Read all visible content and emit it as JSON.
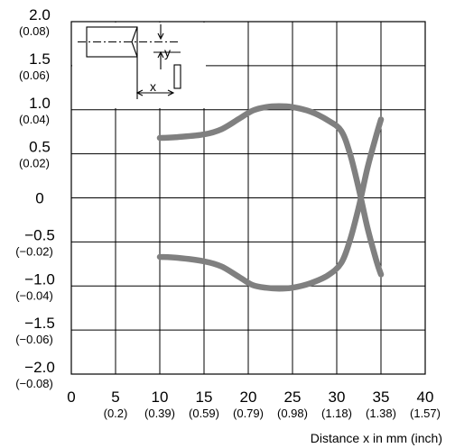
{
  "chart_data": {
    "type": "line",
    "xlabel": "Distance x in mm (inch)",
    "ylabel": "",
    "xlim": [
      0,
      40
    ],
    "ylim": [
      -2.0,
      2.0
    ],
    "grid": true,
    "x_ticks": [
      {
        "value": 0,
        "label": "0",
        "sub": ""
      },
      {
        "value": 5,
        "label": "5",
        "sub": "(0.2)"
      },
      {
        "value": 10,
        "label": "10",
        "sub": "(0.39)"
      },
      {
        "value": 15,
        "label": "15",
        "sub": "(0.59)"
      },
      {
        "value": 20,
        "label": "20",
        "sub": "(0.79)"
      },
      {
        "value": 25,
        "label": "25",
        "sub": "(0.98)"
      },
      {
        "value": 30,
        "label": "30",
        "sub": "(1.18)"
      },
      {
        "value": 35,
        "label": "35",
        "sub": "(1.38)"
      },
      {
        "value": 40,
        "label": "40",
        "sub": "(1.57)"
      }
    ],
    "y_ticks": [
      {
        "value": 2.0,
        "label": "2.0",
        "sub": "(0.08)"
      },
      {
        "value": 1.5,
        "label": "1.5",
        "sub": "(0.06)"
      },
      {
        "value": 1.0,
        "label": "1.0",
        "sub": "(0.04)"
      },
      {
        "value": 0.5,
        "label": "0.5",
        "sub": "(0.02)"
      },
      {
        "value": 0,
        "label": "0",
        "sub": ""
      },
      {
        "value": -0.5,
        "label": "−0.5",
        "sub": "(−0.02)"
      },
      {
        "value": -1.0,
        "label": "−1.0",
        "sub": "(−0.04)"
      },
      {
        "value": -1.5,
        "label": "−1.5",
        "sub": "(−0.06)"
      },
      {
        "value": -2.0,
        "label": "−2.0",
        "sub": "(−0.08)"
      }
    ],
    "series": [
      {
        "x": [
          10,
          12,
          15,
          17,
          19,
          20.5,
          22,
          23.5,
          25,
          27,
          29,
          30.5,
          31.5,
          32.5,
          33.5,
          34.5,
          35
        ],
        "y": [
          0.68,
          0.69,
          0.72,
          0.78,
          0.9,
          0.99,
          1.03,
          1.04,
          1.03,
          0.98,
          0.88,
          0.76,
          0.5,
          0.1,
          -0.35,
          -0.72,
          -0.87
        ]
      },
      {
        "x": [
          10,
          12,
          15,
          17,
          19,
          20.5,
          22,
          23.5,
          25,
          27,
          29,
          30.5,
          31.5,
          32.5,
          33.5,
          34.5,
          35
        ],
        "y": [
          -0.67,
          -0.68,
          -0.72,
          -0.78,
          -0.9,
          -0.99,
          -1.02,
          -1.03,
          -1.02,
          -0.97,
          -0.88,
          -0.74,
          -0.48,
          -0.1,
          0.35,
          0.72,
          0.89
        ]
      }
    ],
    "inset_labels": {
      "x": "x",
      "y": "y"
    },
    "line_color": "#808080"
  }
}
